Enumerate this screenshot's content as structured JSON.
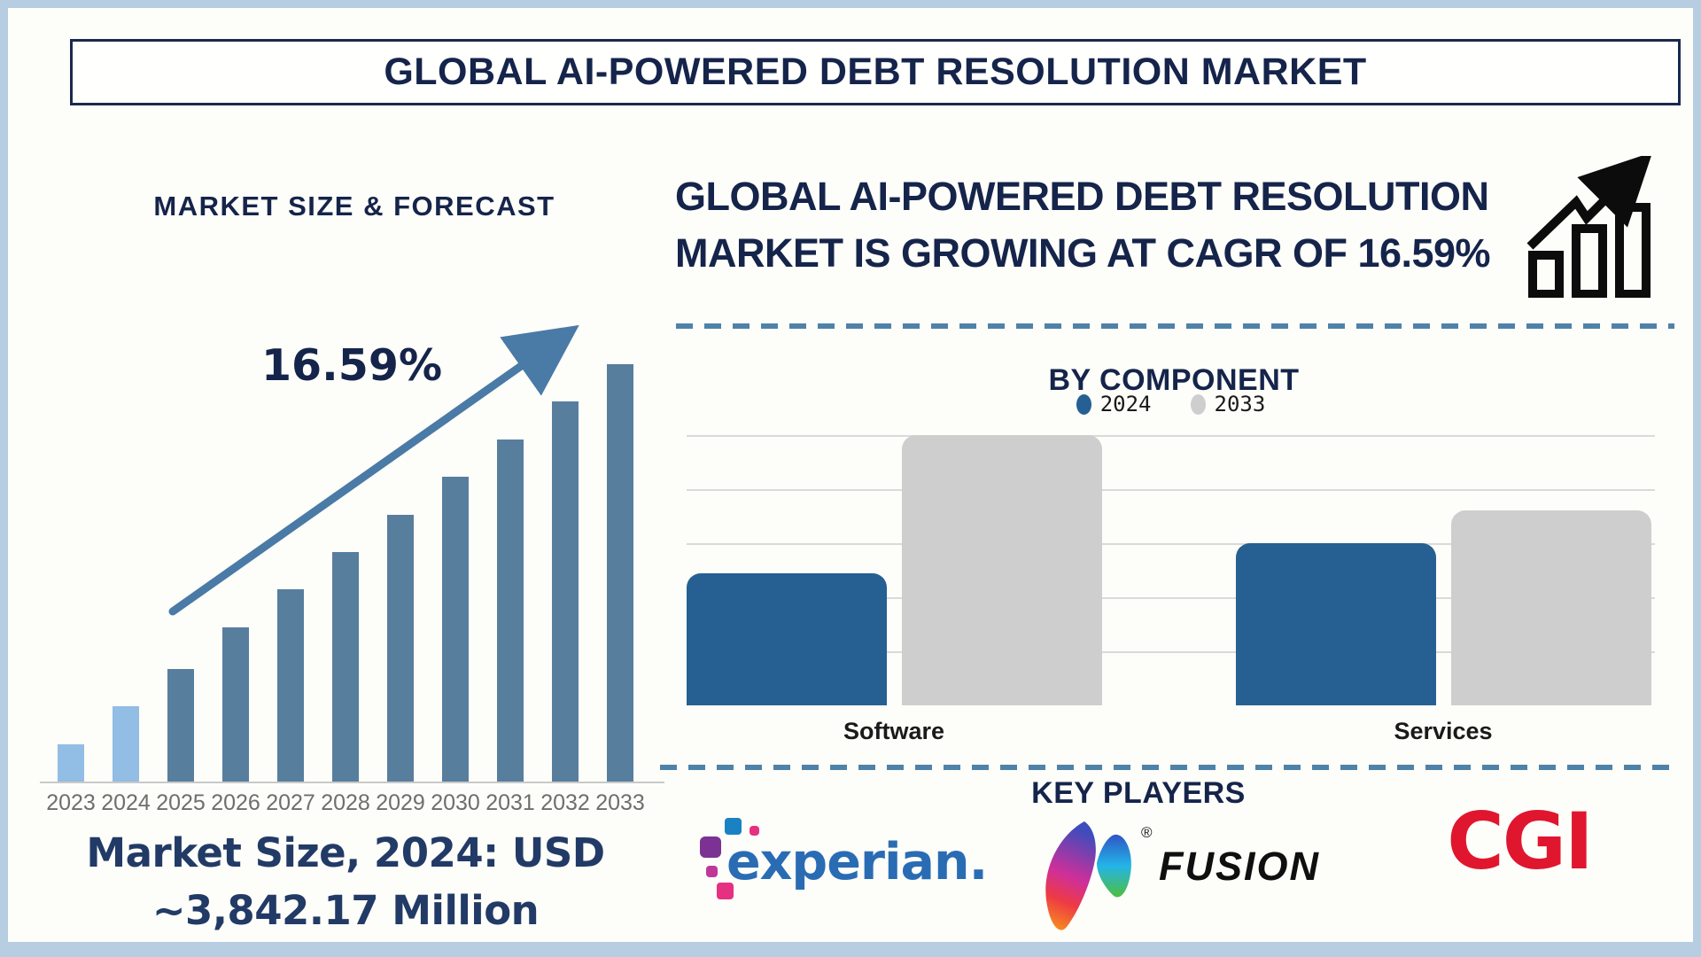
{
  "header": {
    "title": "GLOBAL AI-POWERED DEBT RESOLUTION MARKET"
  },
  "left_panel": {
    "heading": "MARKET SIZE & FORECAST",
    "cagr_label": "16.59%",
    "market_size_line1": "Market Size, 2024: USD",
    "market_size_line2": "~3,842.17 Million"
  },
  "right_panel": {
    "headline_line1": "GLOBAL AI-POWERED DEBT RESOLUTION",
    "headline_line2": "MARKET IS GROWING AT CAGR OF 16.59%",
    "growth_icon": "bar-chart-with-rising-arrow-icon",
    "component": {
      "title": "BY COMPONENT"
    },
    "key_players": {
      "title": "KEY PLAYERS",
      "players": [
        {
          "name": "experian.",
          "brand_color": "#2a6cb4"
        },
        {
          "name": "FUSION",
          "brand_color": "#0f0f0f",
          "trademark": "®"
        },
        {
          "name": "CGI",
          "brand_color": "#e0162f"
        }
      ]
    }
  },
  "chart_data": [
    {
      "id": "market_size_forecast",
      "type": "bar",
      "title": "MARKET SIZE & FORECAST",
      "categories": [
        "2023",
        "2024",
        "2025",
        "2026",
        "2027",
        "2028",
        "2029",
        "2030",
        "2031",
        "2032",
        "2033"
      ],
      "values": [
        9,
        18,
        27,
        37,
        46,
        55,
        64,
        73,
        82,
        91,
        100
      ],
      "units": "relative bar height, % of 2033 bar (no numeric axis shown)",
      "bar_colors": {
        "2023": "#92bde4",
        "2024": "#92bde4",
        "default": "#587e9e"
      },
      "annotations": [
        {
          "text": "16.59%",
          "role": "CAGR label beside upward trend arrow"
        },
        {
          "text": "Market Size, 2024: USD ~3,842.17 Million",
          "role": "caption below x-axis"
        }
      ],
      "xlabel": "",
      "ylabel": "",
      "grid": false,
      "legend_position": "none"
    },
    {
      "id": "by_component",
      "type": "bar",
      "title": "BY COMPONENT",
      "categories": [
        "Software",
        "Services"
      ],
      "series": [
        {
          "name": "2024",
          "color": "#266093",
          "values": [
            49,
            60
          ]
        },
        {
          "name": "2033",
          "color": "#cecece",
          "values": [
            100,
            72
          ]
        }
      ],
      "units": "relative bar height, % of tallest bar (no numeric axis shown)",
      "xlabel": "",
      "ylabel": "",
      "grid": true,
      "legend_position": "top"
    }
  ],
  "colors": {
    "navy_text": "#15244a",
    "caption_navy": "#223a66",
    "forecast_bar_steel": "#587e9e",
    "forecast_bar_light": "#92bde4",
    "trend_arrow": "#4a7aa6",
    "component_2024_blue": "#266093",
    "component_2033_gray": "#cecece",
    "dashed_divider": "#4f82a8",
    "year_axis_label": "#6e6e6e",
    "frame_border": "#b6cde2",
    "gridline": "#dadada"
  }
}
